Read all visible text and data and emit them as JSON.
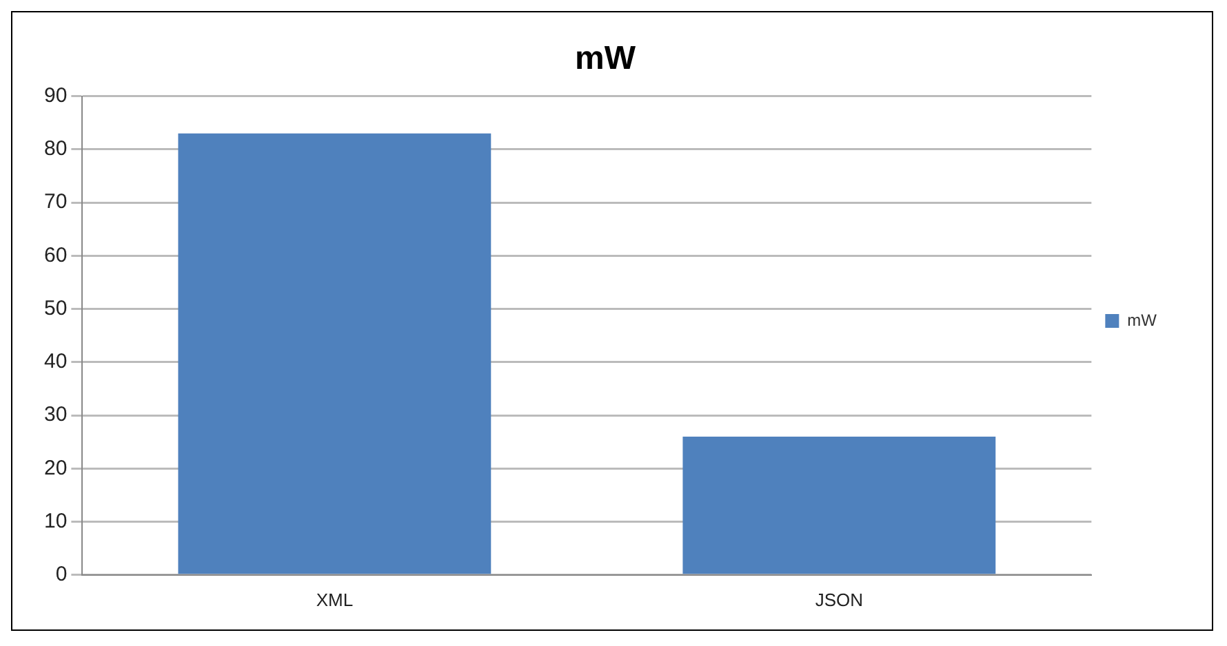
{
  "chart_data": {
    "type": "bar",
    "title": "mW",
    "categories": [
      "XML",
      "JSON"
    ],
    "series": [
      {
        "name": "mW",
        "color": "#4f81bd",
        "values": [
          83,
          26
        ]
      }
    ],
    "ylim": [
      0,
      90
    ],
    "yticks": [
      0,
      10,
      20,
      30,
      40,
      50,
      60,
      70,
      80,
      90
    ],
    "grid": "y",
    "legend": "right"
  }
}
